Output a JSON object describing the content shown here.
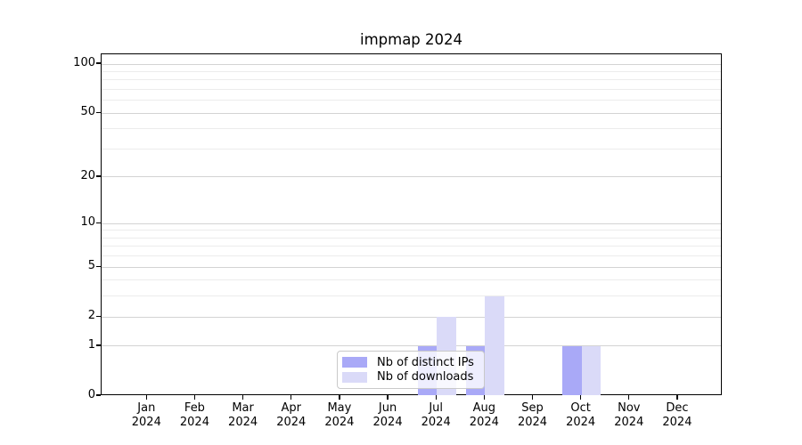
{
  "chart_data": {
    "type": "bar",
    "title": "impmap 2024",
    "categories": [
      "Jan 2024",
      "Feb 2024",
      "Mar 2024",
      "Apr 2024",
      "May 2024",
      "Jun 2024",
      "Jul 2024",
      "Aug 2024",
      "Sep 2024",
      "Oct 2024",
      "Nov 2024",
      "Dec 2024"
    ],
    "month_labels": [
      "Jan",
      "Feb",
      "Mar",
      "Apr",
      "May",
      "Jun",
      "Jul",
      "Aug",
      "Sep",
      "Oct",
      "Nov",
      "Dec"
    ],
    "year_label": "2024",
    "series": [
      {
        "name": "Nb of distinct IPs",
        "color": "#a9a9f7",
        "values": [
          0,
          0,
          0,
          0,
          0,
          0,
          1,
          1,
          0,
          1,
          0,
          0
        ]
      },
      {
        "name": "Nb of downloads",
        "color": "#dadaf8",
        "values": [
          0,
          0,
          0,
          0,
          0,
          0,
          2,
          3,
          0,
          1,
          0,
          0
        ]
      }
    ],
    "yscale": "log1p",
    "ylim": [
      0,
      115
    ],
    "y_major_ticks": [
      0,
      1,
      2,
      5,
      10,
      20,
      50,
      100
    ],
    "y_minor_ticks": [
      3,
      4,
      6,
      7,
      8,
      9,
      30,
      40,
      60,
      70,
      80,
      90
    ],
    "grid": true,
    "legend_position": "lower center",
    "colors": {
      "grid_major": "#d3d3d3",
      "grid_minor": "#ececec",
      "spine": "#000000",
      "text": "#000000"
    }
  }
}
